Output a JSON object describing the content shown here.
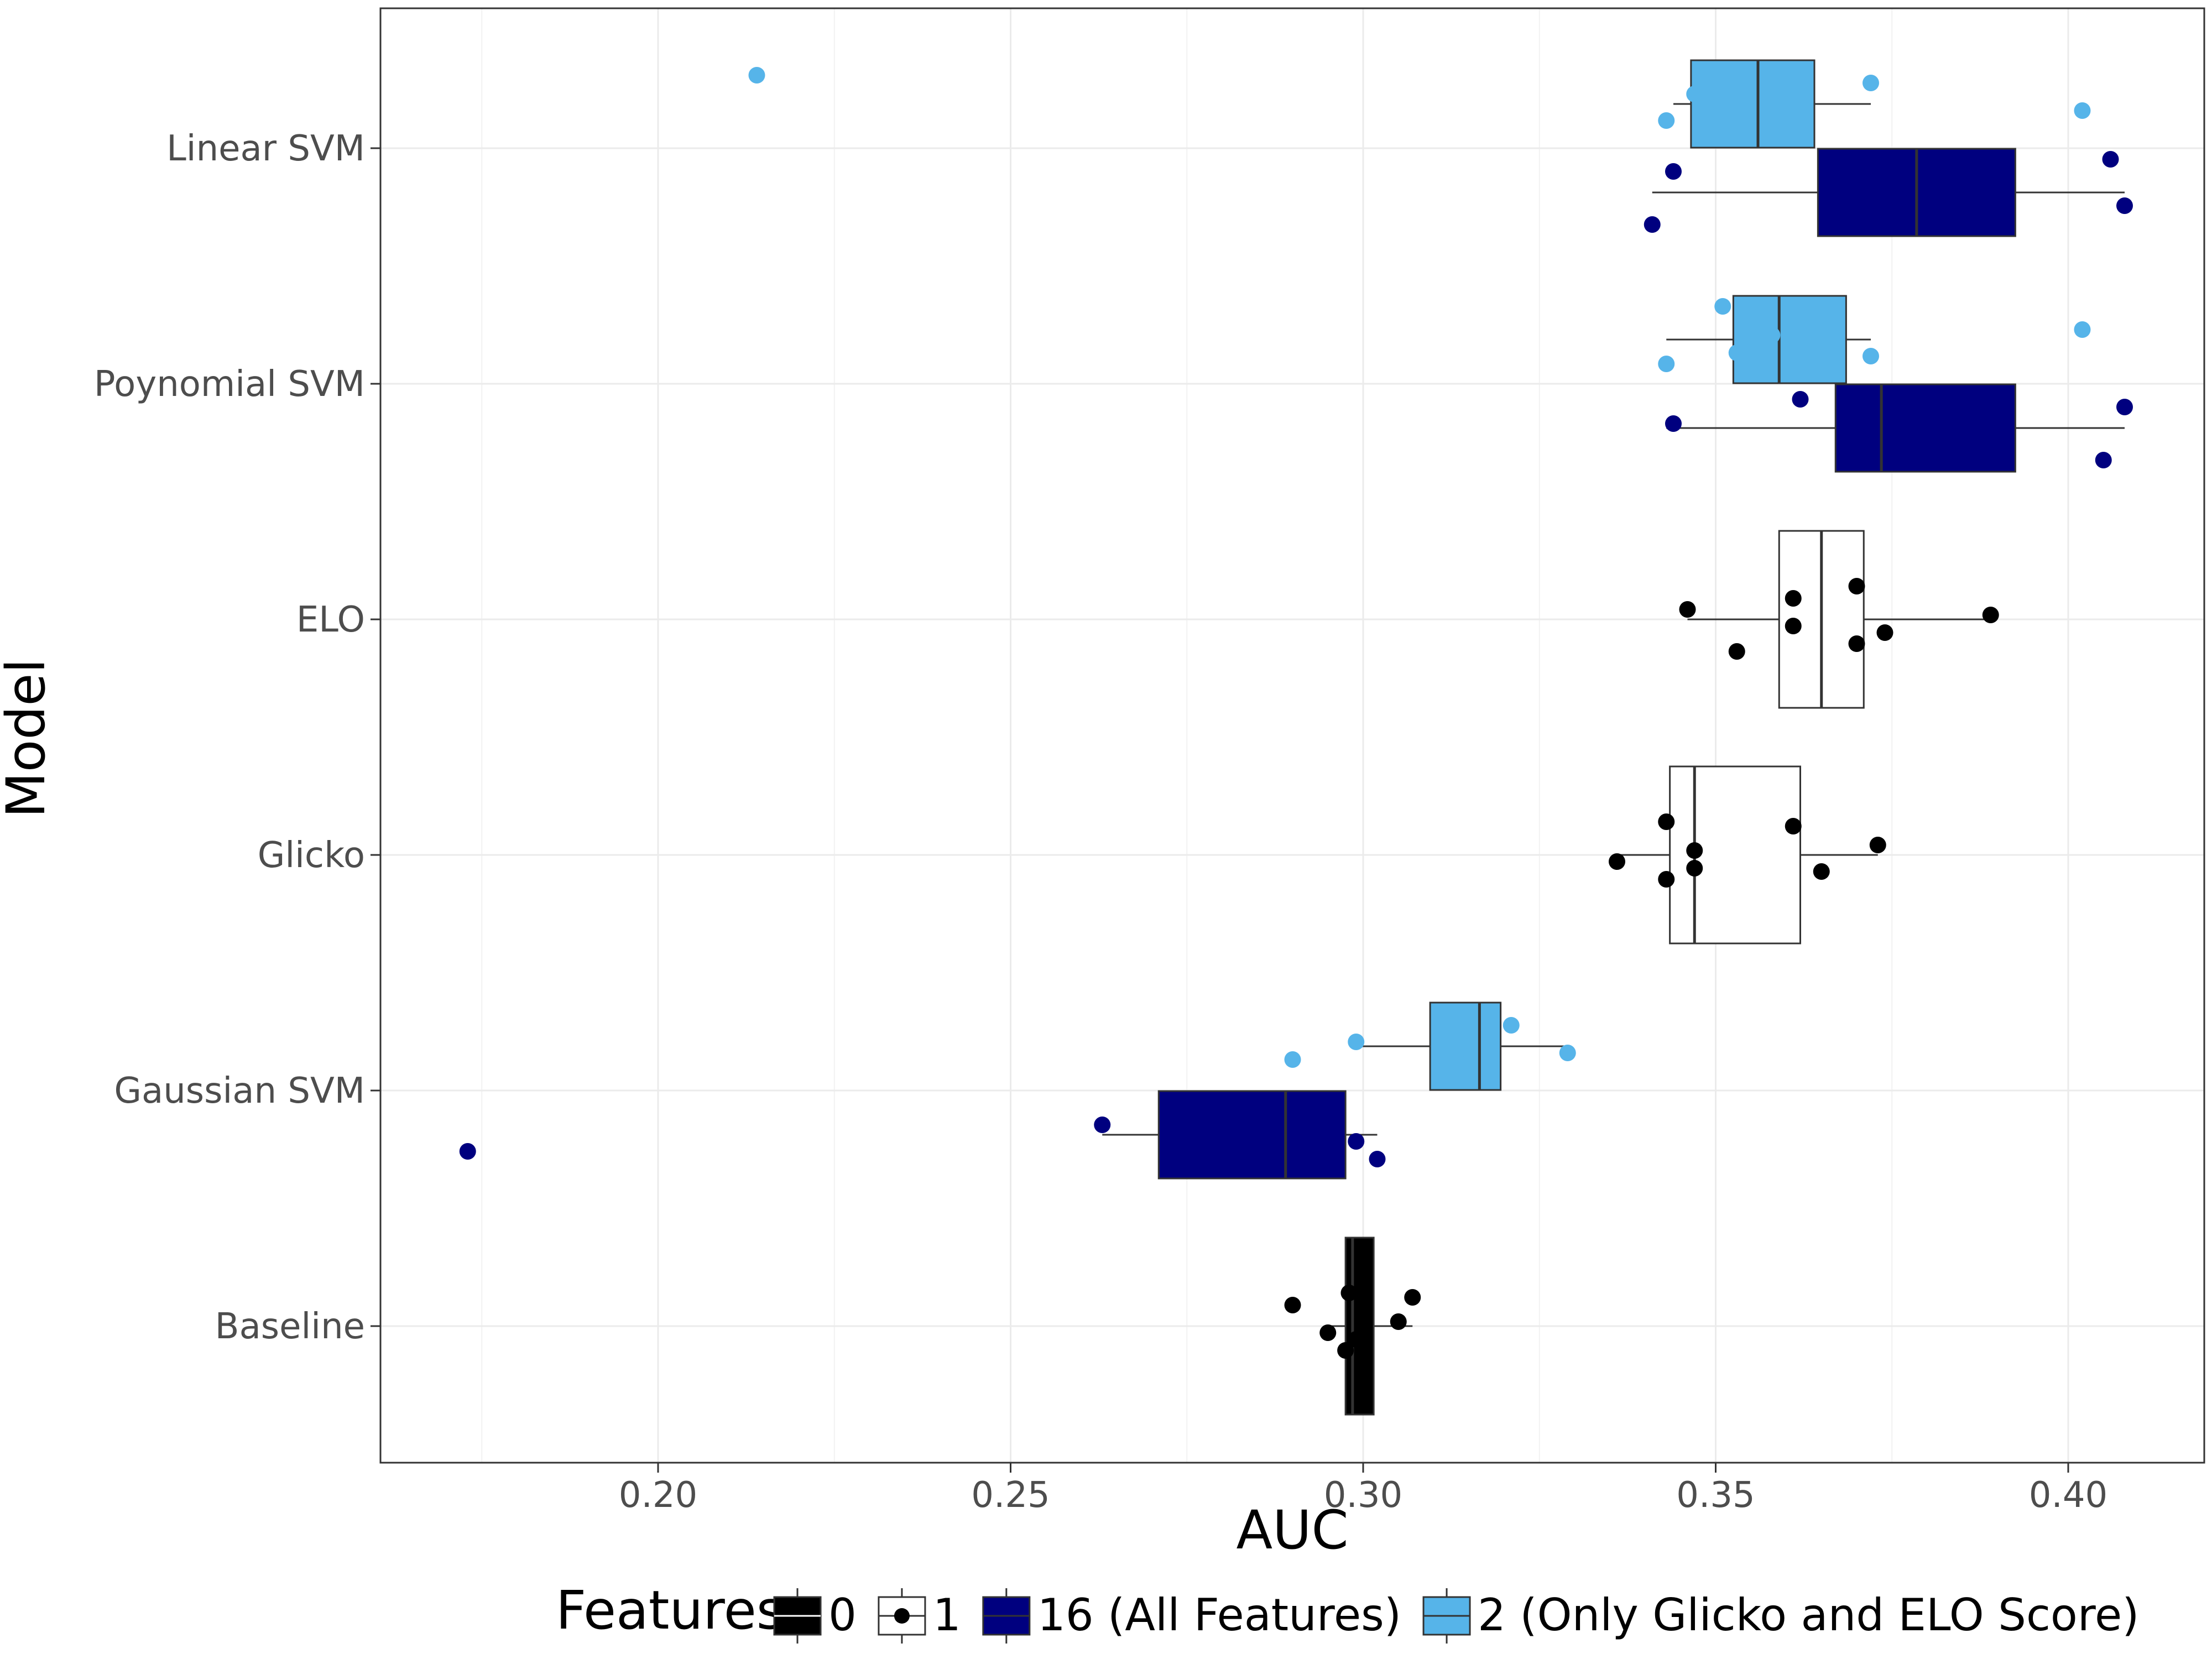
{
  "chart_data": {
    "type": "boxplot",
    "orientation": "horizontal",
    "xlabel": "AUC",
    "ylabel": "Model",
    "xlim": [
      0.16,
      0.42
    ],
    "x_ticks": [
      "0.20",
      "0.25",
      "0.30",
      "0.35",
      "0.40"
    ],
    "x_tick_values": [
      0.2,
      0.25,
      0.3,
      0.35,
      0.4
    ],
    "categories": [
      "Linear SVM",
      "Poynomial SVM",
      "ELO",
      "Glicko",
      "Gaussian SVM",
      "Baseline"
    ],
    "grid": true,
    "legend": {
      "position": "bottom",
      "title": "Features",
      "entries": [
        {
          "label": "0",
          "color": "#000000"
        },
        {
          "label": "1",
          "color": "#ffffff"
        },
        {
          "label": "16 (All Features)",
          "color": "#00007f"
        },
        {
          "label": "2 (Only Glicko and ELO Score)",
          "color": "#56b4e9"
        }
      ]
    },
    "series": [
      {
        "model": "Linear SVM",
        "features": "2",
        "color": "#56b4e9",
        "whisker_low": 0.344,
        "q1": 0.3465,
        "median": 0.356,
        "q3": 0.364,
        "whisker_high": 0.372,
        "points": [
          0.214,
          0.343,
          0.347,
          0.353,
          0.372,
          0.402
        ]
      },
      {
        "model": "Linear SVM",
        "features": "16",
        "color": "#00007f",
        "whisker_low": 0.341,
        "q1": 0.3645,
        "median": 0.3785,
        "q3": 0.3925,
        "whisker_high": 0.408,
        "points": [
          0.341,
          0.344,
          0.376,
          0.389,
          0.406,
          0.408
        ]
      },
      {
        "model": "Poynomial SVM",
        "features": "2",
        "color": "#56b4e9",
        "whisker_low": 0.343,
        "q1": 0.3525,
        "median": 0.359,
        "q3": 0.3685,
        "whisker_high": 0.372,
        "points": [
          0.343,
          0.351,
          0.353,
          0.358,
          0.367,
          0.372,
          0.402
        ]
      },
      {
        "model": "Poynomial SVM",
        "features": "16",
        "color": "#00007f",
        "whisker_low": 0.343,
        "q1": 0.367,
        "median": 0.3735,
        "q3": 0.3925,
        "whisker_high": 0.408,
        "points": [
          0.344,
          0.362,
          0.371,
          0.389,
          0.405,
          0.408
        ]
      },
      {
        "model": "ELO",
        "features": "1",
        "color": "#ffffff",
        "whisker_low": 0.346,
        "q1": 0.359,
        "median": 0.365,
        "q3": 0.371,
        "whisker_high": 0.389,
        "points": [
          0.346,
          0.353,
          0.361,
          0.361,
          0.37,
          0.37,
          0.374,
          0.389
        ]
      },
      {
        "model": "Glicko",
        "features": "1",
        "color": "#ffffff",
        "whisker_low": 0.336,
        "q1": 0.3435,
        "median": 0.347,
        "q3": 0.362,
        "whisker_high": 0.373,
        "points": [
          0.336,
          0.343,
          0.343,
          0.347,
          0.347,
          0.361,
          0.365,
          0.373
        ]
      },
      {
        "model": "Gaussian SVM",
        "features": "2",
        "color": "#56b4e9",
        "whisker_low": 0.299,
        "q1": 0.3095,
        "median": 0.3165,
        "q3": 0.3195,
        "whisker_high": 0.329,
        "points": [
          0.29,
          0.299,
          0.313,
          0.315,
          0.318,
          0.318,
          0.321,
          0.329
        ]
      },
      {
        "model": "Gaussian SVM",
        "features": "16",
        "color": "#00007f",
        "whisker_low": 0.263,
        "q1": 0.271,
        "median": 0.289,
        "q3": 0.2975,
        "whisker_high": 0.302,
        "points": [
          0.173,
          0.263,
          0.274,
          0.293,
          0.299,
          0.302
        ]
      },
      {
        "model": "Baseline",
        "features": "0",
        "color": "#000000",
        "whisker_low": 0.295,
        "q1": 0.2975,
        "median": 0.2985,
        "q3": 0.3015,
        "whisker_high": 0.307,
        "points": [
          0.29,
          0.295,
          0.2975,
          0.298,
          0.299,
          0.305,
          0.307
        ]
      }
    ]
  }
}
